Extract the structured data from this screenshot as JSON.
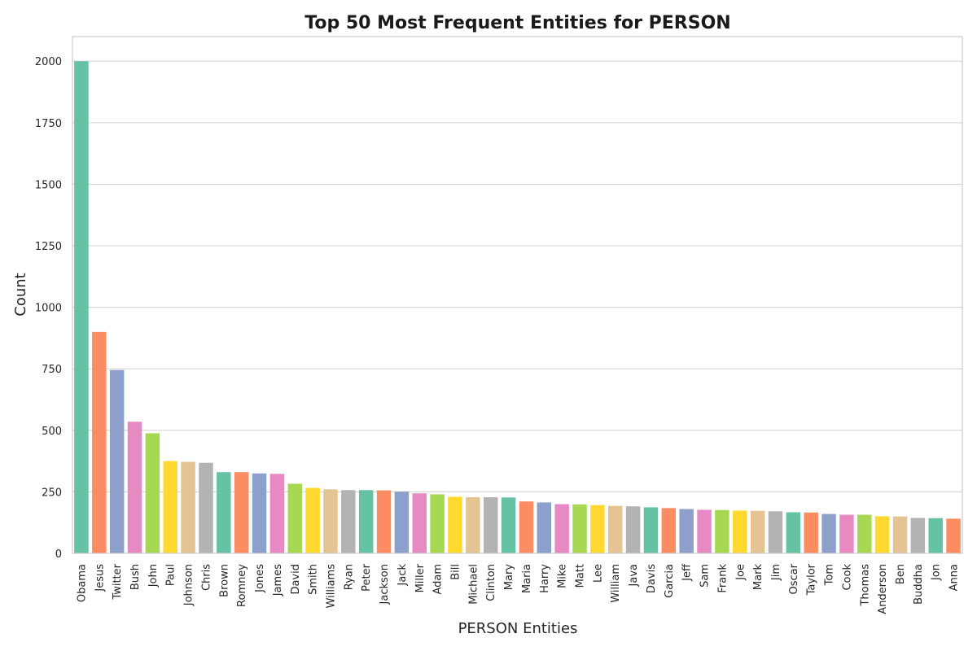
{
  "chart_data": {
    "type": "bar",
    "title": "Top 50 Most Frequent Entities for PERSON",
    "xlabel": "PERSON Entities",
    "ylabel": "Count",
    "ylim": [
      0,
      2100
    ],
    "yticks": [
      0,
      250,
      500,
      750,
      1000,
      1250,
      1500,
      1750,
      2000
    ],
    "grid": "horizontal",
    "categories": [
      "Obama",
      "Jesus",
      "Twitter",
      "Bush",
      "John",
      "Paul",
      "Johnson",
      "Chris",
      "Brown",
      "Romney",
      "Jones",
      "James",
      "David",
      "Smith",
      "Williams",
      "Ryan",
      "Peter",
      "Jackson",
      "Jack",
      "Miller",
      "Adam",
      "Bill",
      "Michael",
      "Clinton",
      "Mary",
      "Maria",
      "Harry",
      "Mike",
      "Matt",
      "Lee",
      "William",
      "Java",
      "Davis",
      "Garcia",
      "Jeff",
      "Sam",
      "Frank",
      "Joe",
      "Mark",
      "Jim",
      "Oscar",
      "Taylor",
      "Tom",
      "Cook",
      "Thomas",
      "Anderson",
      "Ben",
      "Buddha",
      "Jon",
      "Anna"
    ],
    "values": [
      2000,
      900,
      745,
      535,
      488,
      375,
      372,
      368,
      330,
      330,
      325,
      323,
      283,
      266,
      260,
      257,
      257,
      256,
      251,
      244,
      240,
      230,
      228,
      228,
      227,
      211,
      207,
      200,
      199,
      196,
      193,
      191,
      187,
      184,
      180,
      177,
      176,
      174,
      173,
      171,
      167,
      166,
      160,
      157,
      157,
      151,
      150,
      144,
      143,
      141
    ],
    "palette": [
      "#66c2a5",
      "#fc8d62",
      "#8da0cb",
      "#e78ac3",
      "#a6d854",
      "#ffd92f",
      "#e5c494",
      "#b3b3b3"
    ]
  }
}
